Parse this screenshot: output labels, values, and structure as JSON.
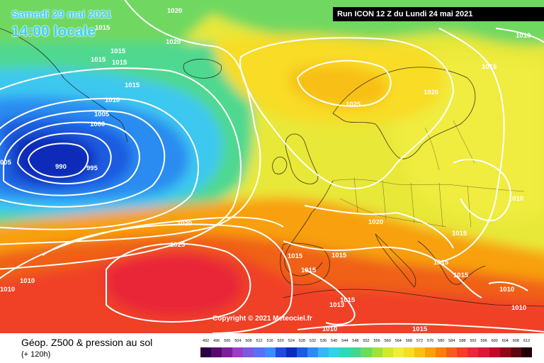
{
  "header": {
    "date": "Samedi 29 mai 2021",
    "time": "14:00 locale",
    "run": "Run ICON 12 Z du Lundi 24 mai 2021"
  },
  "copyright": "Copyright © 2021 Meteociel.fr",
  "footer": {
    "title": "Géop. Z500 & pression au sol",
    "subtitle": "(+ 120h)"
  },
  "scale": {
    "labels": [
      "492",
      "496",
      "500",
      "504",
      "508",
      "512",
      "516",
      "520",
      "524",
      "528",
      "532",
      "536",
      "540",
      "544",
      "548",
      "552",
      "556",
      "560",
      "564",
      "568",
      "572",
      "576",
      "580",
      "584",
      "588",
      "592",
      "596",
      "600",
      "604",
      "608",
      "612"
    ],
    "colors": [
      "#2a0040",
      "#5a0a6e",
      "#7d1e9c",
      "#9c3cc8",
      "#7a5ae0",
      "#5a70f0",
      "#3c8cff",
      "#1e4cd8",
      "#0a2cb8",
      "#1a5ce0",
      "#2a8cf0",
      "#3cb4f8",
      "#34d0e8",
      "#30d8b8",
      "#40d890",
      "#6cdc60",
      "#a0e040",
      "#d0e830",
      "#f0ec40",
      "#f8dc28",
      "#f8c018",
      "#f8a010",
      "#f88010",
      "#f06018",
      "#f04028",
      "#e82838",
      "#d81838",
      "#c00828",
      "#900818",
      "#600410",
      "#200004"
    ]
  },
  "pressure_labels": [
    "1020",
    "1020",
    "1015",
    "1015",
    "1015",
    "1015",
    "1015",
    "1015",
    "1010",
    "1005",
    "1000",
    "990",
    "995",
    "005",
    "1010",
    "1025",
    "1020",
    "1010",
    "1015",
    "1020",
    "1020",
    "1025",
    "1015",
    "1015",
    "1015",
    "1015",
    "1015",
    "1013",
    "1015",
    "1010",
    "1010",
    "1010",
    "1015",
    "1010",
    "1010"
  ],
  "colors": {
    "banner_bg": "#000000",
    "banner_text": "#ffffff",
    "date_text": "#3fd0ff",
    "isobar": "#ffffff"
  }
}
